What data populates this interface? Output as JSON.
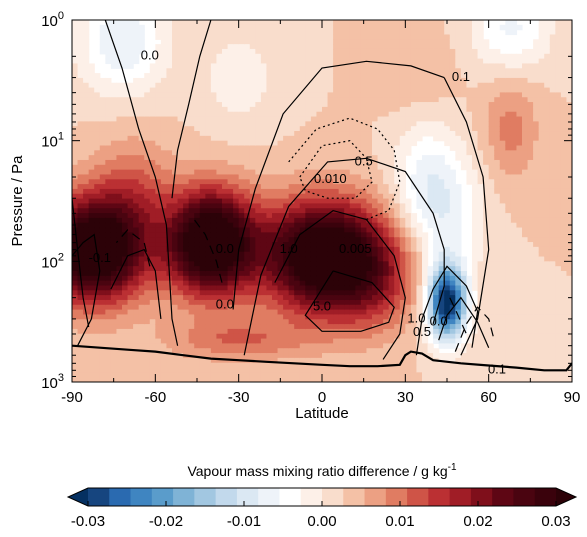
{
  "chart_data": {
    "type": "heatmap",
    "title": "",
    "xlabel": "Latitude",
    "ylabel": "Pressure / Pa",
    "xlim": [
      -90,
      90
    ],
    "ylim": [
      1,
      1000
    ],
    "yscale": "log",
    "y_inverted": true,
    "x_ticks": [
      -90,
      -60,
      -30,
      0,
      30,
      60,
      90
    ],
    "x_tick_labels": [
      "-90",
      "-60",
      "-30",
      "0",
      "30",
      "60",
      "90"
    ],
    "y_tick_labels": [
      {
        "value": 1,
        "base": "10",
        "exp": "0"
      },
      {
        "value": 10,
        "base": "10",
        "exp": "1"
      },
      {
        "value": 100,
        "base": "10",
        "exp": "2"
      },
      {
        "value": 1000,
        "base": "10",
        "exp": "3"
      }
    ],
    "colorbar": {
      "label": "Vapour mass mixing ratio difference / g kg",
      "label_superscript": "-1",
      "min": -0.03,
      "max": 0.03,
      "step": 0.0025,
      "extend": "both",
      "ticks": [
        -0.03,
        -0.02,
        -0.01,
        0.0,
        0.01,
        0.02,
        0.03
      ],
      "tick_labels": [
        "-0.03",
        "-0.02",
        "-0.01",
        "0.00",
        "0.01",
        "0.02",
        "0.03"
      ],
      "colors": [
        "#053061",
        "#16457f",
        "#2a6ab0",
        "#3f85c1",
        "#5a9ccb",
        "#7fb3d6",
        "#a2c7e1",
        "#c2d9ec",
        "#dbe8f3",
        "#eef3f9",
        "#ffffff",
        "#fdf0e8",
        "#f9ddcc",
        "#f4c1a6",
        "#eca083",
        "#e07c62",
        "#cf5447",
        "#bb3033",
        "#a01d26",
        "#7f0f1b",
        "#5e0614",
        "#4a0410",
        "#3a020c",
        "#2c0208"
      ]
    },
    "heat_blobs": [
      {
        "x": -82,
        "p": 80,
        "value": 0.034,
        "sx": 13,
        "sp": 0.3
      },
      {
        "x": -40,
        "p": 70,
        "value": 0.034,
        "sx": 11,
        "sp": 0.3
      },
      {
        "x": 0,
        "p": 90,
        "value": 0.032,
        "sx": 15,
        "sp": 0.32
      },
      {
        "x": -68,
        "p": 25,
        "value": 0.007,
        "sx": 10,
        "sp": 0.3
      },
      {
        "x": 18,
        "p": 140,
        "value": 0.01,
        "sx": 12,
        "sp": 0.3
      },
      {
        "x": 45,
        "p": 220,
        "value": -0.032,
        "sx": 5,
        "sp": 0.22
      },
      {
        "x": 45,
        "p": 40,
        "value": -0.008,
        "sx": 9,
        "sp": 0.4
      },
      {
        "x": 36,
        "p": 20,
        "value": -0.006,
        "sx": 8,
        "sp": 0.35
      },
      {
        "x": -72,
        "p": 1.5,
        "value": -0.01,
        "sx": 11,
        "sp": 0.3
      },
      {
        "x": -30,
        "p": 3,
        "value": -0.004,
        "sx": 10,
        "sp": 0.3
      },
      {
        "x": 68,
        "p": 1.2,
        "value": -0.008,
        "sx": 10,
        "sp": 0.25
      },
      {
        "x": 68,
        "p": 8,
        "value": 0.006,
        "sx": 7,
        "sp": 0.3
      },
      {
        "x": 35,
        "p": 3,
        "value": 0.002,
        "sx": 10,
        "sp": 0.3
      },
      {
        "x": -30,
        "p": 450,
        "value": 0.007,
        "sx": 18,
        "sp": 0.12
      }
    ],
    "contour_labels": [
      {
        "text": "0.0",
        "x": -62,
        "p": 2.0
      },
      {
        "text": "0.1",
        "x": 50,
        "p": 3.0
      },
      {
        "text": "0.5",
        "x": 15,
        "p": 15
      },
      {
        "text": "0.010",
        "x": 3,
        "p": 21
      },
      {
        "text": "0.005",
        "x": 12,
        "p": 80
      },
      {
        "text": "1.0",
        "x": -12,
        "p": 80
      },
      {
        "text": "5.0",
        "x": 0,
        "p": 240
      },
      {
        "text": "0.0",
        "x": -35,
        "p": 80
      },
      {
        "text": "0.0",
        "x": -35,
        "p": 230
      },
      {
        "text": "-0.1",
        "x": -80,
        "p": 95
      },
      {
        "text": "1.0",
        "x": 34,
        "p": 300
      },
      {
        "text": "0.5",
        "x": 36,
        "p": 390
      },
      {
        "text": "0.0",
        "x": 42,
        "p": 320
      },
      {
        "text": "0.1",
        "x": 63,
        "p": 800
      }
    ]
  }
}
